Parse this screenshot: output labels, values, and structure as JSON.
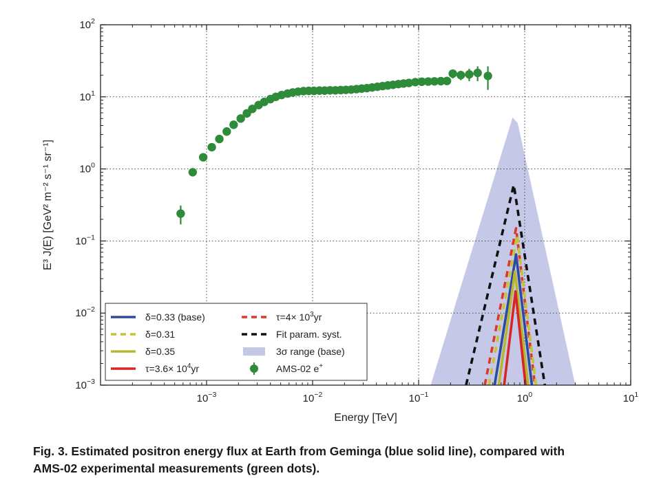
{
  "chart_data": {
    "type": "line",
    "xlabel": "Energy [TeV]",
    "ylabel": "E³ J(E) [GeV² m⁻² s⁻¹ sr⁻¹]",
    "xscale": "log",
    "yscale": "log",
    "xlim": [
      0.0001,
      10
    ],
    "ylim": [
      0.001,
      100
    ],
    "grid": true,
    "x_ticks": [
      {
        "value": 0.001,
        "base": "10",
        "exp": "−3"
      },
      {
        "value": 0.01,
        "base": "10",
        "exp": "−2"
      },
      {
        "value": 0.1,
        "base": "10",
        "exp": "−1"
      },
      {
        "value": 1,
        "base": "10",
        "exp": "0"
      },
      {
        "value": 10,
        "base": "10",
        "exp": "1"
      }
    ],
    "y_ticks": [
      {
        "value": 0.001,
        "base": "10",
        "exp": "−3"
      },
      {
        "value": 0.01,
        "base": "10",
        "exp": "−2"
      },
      {
        "value": 0.1,
        "base": "10",
        "exp": "−1"
      },
      {
        "value": 1,
        "base": "10",
        "exp": "0"
      },
      {
        "value": 10,
        "base": "10",
        "exp": "1"
      },
      {
        "value": 100,
        "base": "10",
        "exp": "2"
      }
    ],
    "band": {
      "name": "3σ range (base)",
      "color": "#c5c8e6",
      "points": [
        [
          0.13,
          0.001
        ],
        [
          0.77,
          5.2
        ],
        [
          0.86,
          4.3
        ],
        [
          3.0,
          0.001
        ]
      ]
    },
    "series": [
      {
        "name": "Fit param. syst.",
        "color": "#111111",
        "dash": "dashed",
        "points": [
          [
            0.28,
            0.001
          ],
          [
            0.79,
            0.6
          ],
          [
            1.55,
            0.001
          ]
        ]
      },
      {
        "name": "τ=4× 10³yr",
        "color": "#d93a2b",
        "dash": "dashed",
        "points": [
          [
            0.42,
            0.001
          ],
          [
            0.83,
            0.15
          ],
          [
            1.25,
            0.001
          ]
        ]
      },
      {
        "name": "δ=0.31",
        "color": "#c6c23a",
        "dash": "dashed",
        "points": [
          [
            0.46,
            0.001
          ],
          [
            0.85,
            0.12
          ],
          [
            1.28,
            0.001
          ]
        ]
      },
      {
        "name": "δ=0.33 (base)",
        "color": "#2b4aa0",
        "dash": "solid",
        "points": [
          [
            0.52,
            0.001
          ],
          [
            0.83,
            0.065
          ],
          [
            1.17,
            0.001
          ]
        ]
      },
      {
        "name": "δ=0.35",
        "color": "#b8b52e",
        "dash": "solid",
        "points": [
          [
            0.57,
            0.001
          ],
          [
            0.81,
            0.038
          ],
          [
            1.08,
            0.001
          ]
        ]
      },
      {
        "name": "τ=3.6× 10⁴yr",
        "color": "#d62728",
        "dash": "solid",
        "points": [
          [
            0.64,
            0.001
          ],
          [
            0.82,
            0.02
          ],
          [
            1.02,
            0.001
          ]
        ]
      }
    ],
    "scatter": {
      "name": "AMS-02 e⁺",
      "color": "#2e8b3a",
      "points": [
        {
          "x": 0.00057,
          "y": 0.24,
          "err": 0.07
        },
        {
          "x": 0.00074,
          "y": 0.9
        },
        {
          "x": 0.00093,
          "y": 1.45
        },
        {
          "x": 0.00112,
          "y": 2.0
        },
        {
          "x": 0.00132,
          "y": 2.6
        },
        {
          "x": 0.00155,
          "y": 3.3
        },
        {
          "x": 0.0018,
          "y": 4.1
        },
        {
          "x": 0.0021,
          "y": 5.0
        },
        {
          "x": 0.0024,
          "y": 5.9
        },
        {
          "x": 0.0027,
          "y": 6.8
        },
        {
          "x": 0.0031,
          "y": 7.7
        },
        {
          "x": 0.0035,
          "y": 8.5
        },
        {
          "x": 0.004,
          "y": 9.3
        },
        {
          "x": 0.0045,
          "y": 10.0
        },
        {
          "x": 0.0051,
          "y": 10.6
        },
        {
          "x": 0.0058,
          "y": 11.1
        },
        {
          "x": 0.0065,
          "y": 11.5
        },
        {
          "x": 0.0073,
          "y": 11.8
        },
        {
          "x": 0.0082,
          "y": 12.0
        },
        {
          "x": 0.0092,
          "y": 12.1
        },
        {
          "x": 0.0103,
          "y": 12.1
        },
        {
          "x": 0.0116,
          "y": 12.2
        },
        {
          "x": 0.013,
          "y": 12.2
        },
        {
          "x": 0.0146,
          "y": 12.3
        },
        {
          "x": 0.0164,
          "y": 12.3
        },
        {
          "x": 0.0184,
          "y": 12.4
        },
        {
          "x": 0.0206,
          "y": 12.5
        },
        {
          "x": 0.0231,
          "y": 12.6
        },
        {
          "x": 0.0259,
          "y": 12.8
        },
        {
          "x": 0.029,
          "y": 13.0
        },
        {
          "x": 0.0325,
          "y": 13.2
        },
        {
          "x": 0.0364,
          "y": 13.5
        },
        {
          "x": 0.0408,
          "y": 13.8
        },
        {
          "x": 0.0457,
          "y": 14.1
        },
        {
          "x": 0.0512,
          "y": 14.4
        },
        {
          "x": 0.0574,
          "y": 14.7
        },
        {
          "x": 0.0643,
          "y": 15.0
        },
        {
          "x": 0.072,
          "y": 15.3
        },
        {
          "x": 0.081,
          "y": 15.6
        },
        {
          "x": 0.093,
          "y": 16.0
        },
        {
          "x": 0.107,
          "y": 16.2
        },
        {
          "x": 0.123,
          "y": 16.3
        },
        {
          "x": 0.141,
          "y": 16.4
        },
        {
          "x": 0.162,
          "y": 16.5
        },
        {
          "x": 0.185,
          "y": 16.6
        },
        {
          "x": 0.21,
          "y": 21.0,
          "err": 3.0
        },
        {
          "x": 0.25,
          "y": 20.0,
          "err": 3.0
        },
        {
          "x": 0.3,
          "y": 20.5,
          "err": 4.0
        },
        {
          "x": 0.36,
          "y": 21.5,
          "err": 5.0
        },
        {
          "x": 0.45,
          "y": 19.5,
          "err": 7.0
        }
      ]
    },
    "legend": {
      "placement": "lower-left",
      "entries": [
        {
          "key": "base",
          "label": "δ=0.33 (base)",
          "kind": "line-solid",
          "color": "#2b4aa0"
        },
        {
          "key": "delta031",
          "label": "δ=0.31",
          "kind": "line-dashed",
          "color": "#c6c23a"
        },
        {
          "key": "delta035",
          "label": "δ=0.35",
          "kind": "line-solid",
          "color": "#b8b52e"
        },
        {
          "key": "tau36",
          "label": "τ=3.6× 10",
          "sup": "4",
          "tail": "yr",
          "kind": "line-solid",
          "color": "#d62728"
        },
        {
          "key": "tau4",
          "label": "τ=4× 10",
          "sup": "3",
          "tail": "yr",
          "kind": "line-dashed",
          "color": "#d93a2b"
        },
        {
          "key": "fitsyst",
          "label": "Fit param. syst.",
          "kind": "line-dashed",
          "color": "#111111"
        },
        {
          "key": "band",
          "label": "3σ range (base)",
          "kind": "patch",
          "color": "#c5c8e6"
        },
        {
          "key": "ams",
          "label": "AMS-02 e",
          "sup": "+",
          "tail": "",
          "kind": "marker",
          "color": "#2e8b3a"
        }
      ]
    }
  },
  "caption": {
    "line1": "Fig. 3. Estimated positron energy flux at Earth from Geminga (blue solid line), compared with",
    "line2": "AMS-02 experimental measurements (green dots)."
  }
}
